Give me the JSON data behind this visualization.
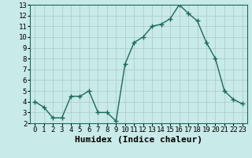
{
  "x": [
    0,
    1,
    2,
    3,
    4,
    5,
    6,
    7,
    8,
    9,
    10,
    11,
    12,
    13,
    14,
    15,
    16,
    17,
    18,
    19,
    20,
    21,
    22,
    23
  ],
  "y": [
    4.0,
    3.5,
    2.5,
    2.5,
    4.5,
    4.5,
    5.0,
    3.0,
    3.0,
    2.2,
    7.5,
    9.5,
    10.0,
    11.0,
    11.2,
    11.7,
    13.0,
    12.2,
    11.5,
    9.5,
    8.0,
    5.0,
    4.2,
    3.8
  ],
  "line_color": "#1a6b5a",
  "bg_color": "#c8eae8",
  "grid_color": "#b0cece",
  "xlabel": "Humidex (Indice chaleur)",
  "xlim": [
    -0.5,
    23.5
  ],
  "ylim": [
    2,
    13
  ],
  "yticks": [
    2,
    3,
    4,
    5,
    6,
    7,
    8,
    9,
    10,
    11,
    12,
    13
  ],
  "xticks": [
    0,
    1,
    2,
    3,
    4,
    5,
    6,
    7,
    8,
    9,
    10,
    11,
    12,
    13,
    14,
    15,
    16,
    17,
    18,
    19,
    20,
    21,
    22,
    23
  ],
  "marker": "+",
  "markersize": 4,
  "linewidth": 1.0,
  "xlabel_fontsize": 8,
  "tick_fontsize": 6.5
}
